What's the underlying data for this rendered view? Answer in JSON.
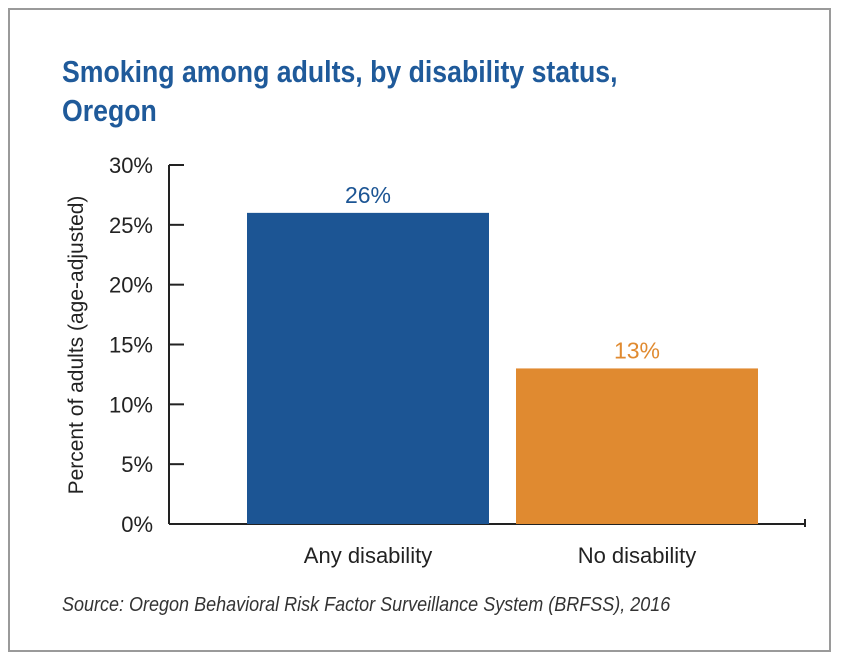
{
  "title_lines": [
    "Smoking among adults, by disability status,",
    "Oregon"
  ],
  "source": "Source: Oregon Behavioral Risk Factor Surveillance System (BRFSS), 2016",
  "chart_data": {
    "type": "bar",
    "title": "Smoking among adults, by disability status, Oregon",
    "categories": [
      "Any disability",
      "No disability"
    ],
    "values": [
      26,
      13
    ],
    "data_labels": [
      "26%",
      "13%"
    ],
    "bar_colors": [
      "#1c5594",
      "#e08a30"
    ],
    "label_colors": [
      "#1c5594",
      "#e08a30"
    ],
    "ylabel": "Percent of adults (age-adjusted)",
    "xlabel": "",
    "ylim": [
      0,
      30
    ],
    "yticks": [
      0,
      5,
      10,
      15,
      20,
      25,
      30
    ],
    "ytick_labels": [
      "0%",
      "5%",
      "10%",
      "15%",
      "20%",
      "25%",
      "30%"
    ],
    "grid": false,
    "legend": "none"
  }
}
